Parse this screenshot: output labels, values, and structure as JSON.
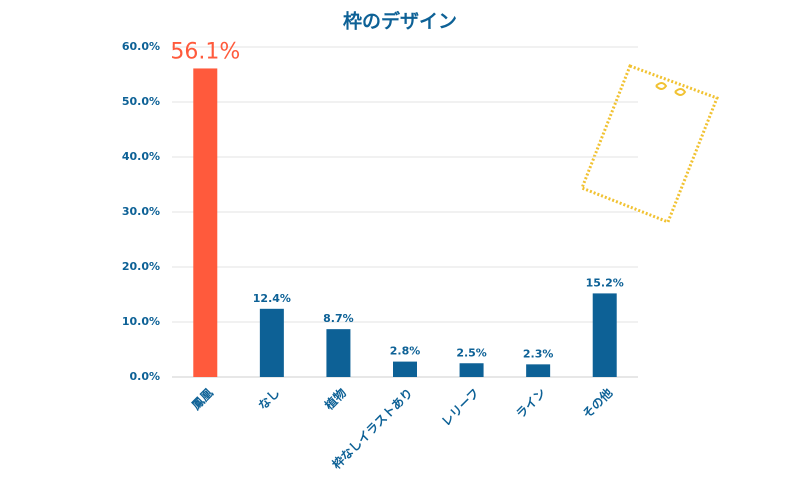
{
  "chart_data": {
    "type": "bar",
    "title": "枠のデザイン",
    "categories": [
      "鳳凰",
      "なし",
      "植物",
      "枠なしイラストあり",
      "レリーフ",
      "ライン",
      "その他"
    ],
    "values": [
      56.1,
      12.4,
      8.7,
      2.8,
      2.5,
      2.3,
      15.2
    ],
    "value_labels": [
      "56.1%",
      "12.4%",
      "8.7%",
      "2.8%",
      "2.5%",
      "2.3%",
      "15.2%"
    ],
    "colors": [
      "#ff5a3c",
      "#0d6196",
      "#0d6196",
      "#0d6196",
      "#0d6196",
      "#0d6196",
      "#0d6196"
    ],
    "ylim": [
      0,
      60
    ],
    "yticks": [
      {
        "value": 0,
        "label": "0.0%"
      },
      {
        "value": 10,
        "label": "10.0%"
      },
      {
        "value": 20,
        "label": "20.0%"
      },
      {
        "value": 30,
        "label": "30.0%"
      },
      {
        "value": 40,
        "label": "40.0%"
      },
      {
        "value": 50,
        "label": "50.0%"
      },
      {
        "value": 60,
        "label": "60.0%"
      }
    ],
    "grid": true
  }
}
